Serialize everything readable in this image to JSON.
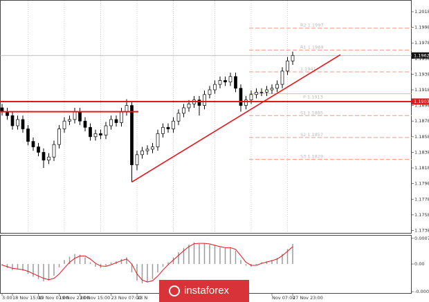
{
  "chart_data": [
    {
      "type": "candlestick",
      "categories": [
        "3:00",
        null,
        "18 Nov 15:00",
        null,
        null,
        null,
        null,
        "19 Nov 07:00",
        null,
        null,
        null,
        "19 Nov 23:00",
        null,
        null,
        null,
        "20 Nov 15:00",
        null,
        null,
        null,
        null,
        null,
        "23 Nov 07:00",
        null,
        null,
        null,
        null,
        "23 N",
        null,
        null,
        null,
        null,
        null,
        null,
        null,
        null,
        null,
        null,
        null,
        null,
        null,
        null,
        null,
        null,
        null,
        null,
        null,
        null,
        null,
        null,
        null,
        null,
        null,
        "Nov 07:00",
        null,
        null,
        null,
        "27 Nov 23:00"
      ],
      "open": [
        1.1895,
        1.189,
        1.1885,
        1.1872,
        1.188,
        1.1868,
        1.1852,
        1.1845,
        1.1838,
        1.1828,
        1.1832,
        1.1848,
        1.1868,
        1.1878,
        1.188,
        1.189,
        1.1878,
        1.187,
        1.1858,
        1.1862,
        1.186,
        1.1872,
        1.188,
        1.1876,
        1.189,
        1.1898,
        1.1822,
        1.1835,
        1.184,
        1.1842,
        1.1845,
        1.1862,
        1.187,
        1.1868,
        1.1878,
        1.1888,
        1.1895,
        1.19,
        1.1905,
        1.1898,
        1.1912,
        1.1918,
        1.1925,
        1.193,
        1.1928,
        1.1935,
        1.192,
        1.1898,
        1.1905,
        1.1912,
        1.1915,
        1.1915,
        1.1918,
        1.192,
        1.1925,
        1.1942,
        1.1955
      ],
      "high": [
        1.19,
        1.1895,
        1.189,
        1.1885,
        1.1885,
        1.1873,
        1.1857,
        1.185,
        1.1843,
        1.1837,
        1.1853,
        1.1873,
        1.1883,
        1.1885,
        1.1895,
        1.1895,
        1.1883,
        1.1875,
        1.1867,
        1.1867,
        1.1877,
        1.1885,
        1.1885,
        1.1895,
        1.1906,
        1.1903,
        1.184,
        1.1845,
        1.1847,
        1.185,
        1.1867,
        1.1875,
        1.1875,
        1.1883,
        1.1893,
        1.19,
        1.1905,
        1.191,
        1.191,
        1.1917,
        1.1923,
        1.193,
        1.1935,
        1.1935,
        1.194,
        1.194,
        1.1925,
        1.191,
        1.1917,
        1.192,
        1.192,
        1.1923,
        1.1925,
        1.193,
        1.1947,
        1.196,
        1.1967
      ],
      "low": [
        1.1885,
        1.188,
        1.1867,
        1.1867,
        1.1863,
        1.1847,
        1.184,
        1.1833,
        1.1818,
        1.1823,
        1.1827,
        1.1843,
        1.1863,
        1.1873,
        1.1875,
        1.1873,
        1.1865,
        1.1853,
        1.1853,
        1.1855,
        1.1855,
        1.1867,
        1.1871,
        1.1871,
        1.1885,
        1.18,
        1.1815,
        1.183,
        1.1835,
        1.1837,
        1.184,
        1.1857,
        1.1863,
        1.1863,
        1.1873,
        1.1883,
        1.189,
        1.1895,
        1.1885,
        1.1893,
        1.1907,
        1.1913,
        1.192,
        1.1923,
        1.1923,
        1.1915,
        1.189,
        1.1893,
        1.19,
        1.1907,
        1.191,
        1.191,
        1.1913,
        1.1915,
        1.192,
        1.1937,
        1.195
      ],
      "close": [
        1.189,
        1.1885,
        1.1872,
        1.188,
        1.1868,
        1.1852,
        1.1845,
        1.1838,
        1.1828,
        1.1832,
        1.1848,
        1.1868,
        1.1878,
        1.188,
        1.189,
        1.1878,
        1.187,
        1.1858,
        1.1862,
        1.186,
        1.1872,
        1.188,
        1.1876,
        1.189,
        1.1898,
        1.1822,
        1.1835,
        1.184,
        1.1842,
        1.1845,
        1.1862,
        1.187,
        1.1868,
        1.1878,
        1.1888,
        1.1895,
        1.19,
        1.1905,
        1.1898,
        1.1912,
        1.1918,
        1.1925,
        1.193,
        1.1928,
        1.1935,
        1.192,
        1.1898,
        1.1905,
        1.1912,
        1.1915,
        1.1915,
        1.1918,
        1.192,
        1.1925,
        1.1942,
        1.1955,
        1.1962
      ],
      "ylim": [
        1.1734,
        1.2033
      ],
      "yticks": [
        1.2018,
        1.1998,
        1.1978,
        1.1958,
        1.1938,
        1.1918,
        1.1898,
        1.1878,
        1.1858,
        1.1838,
        1.1818,
        1.1798,
        1.1778,
        1.1758,
        1.1738
      ],
      "current_price": 1.1962,
      "level": 1.1903,
      "level2": 1.189,
      "level_color": "#e8141b",
      "trendline": [
        1.18,
        1.1963
      ],
      "pivot_point": {
        "value": 1.1913,
        "label": "P  1.1913"
      },
      "pivot_point_color": "#e6c94a",
      "pivots": [
        {
          "value": 1.1997,
          "label": "R2  1.1997"
        },
        {
          "value": 1.1969,
          "label": "R1  1.1969"
        },
        {
          "value": 1.1941,
          "label": "1.1941"
        },
        {
          "value": 1.1885,
          "label": "S1  1.1885"
        },
        {
          "value": 1.1857,
          "label": "S2  1.1857"
        },
        {
          "value": 1.1829,
          "label": "S3  1.1829"
        }
      ],
      "pivot_color": "#f09a80",
      "watermark": "instaforex"
    },
    {
      "type": "oscillator",
      "values": [
        -5e-05,
        -0.00012,
        -0.00018,
        -0.00015,
        -0.0002,
        -0.0003,
        -0.00038,
        -0.00045,
        -0.00052,
        -0.0005,
        -0.00035,
        -0.0001,
        0.00012,
        0.00022,
        0.0003,
        0.00028,
        0.0002,
        5e-05,
        -8e-05,
        -0.00012,
        -5e-05,
        5e-05,
        8e-05,
        0.00015,
        0.0002,
        -0.00025,
        -0.0005,
        -0.00058,
        -0.00055,
        -0.00045,
        -0.00025,
        -8e-05,
        5e-05,
        0.0002,
        0.00035,
        0.00048,
        0.00058,
        0.00065,
        0.0006,
        0.00062,
        0.00058,
        0.00055,
        0.0005,
        0.00048,
        0.0005,
        0.0004,
        0.00012,
        -5e-05,
        -8e-05,
        -2e-05,
        5e-05,
        8e-05,
        0.00012,
        0.00018,
        0.0003,
        0.00045,
        0.0006
      ],
      "signal": [
        -3e-05,
        -8e-05,
        -0.00013,
        -0.00015,
        -0.00017,
        -0.00022,
        -0.00029,
        -0.00036,
        -0.00043,
        -0.00047,
        -0.00043,
        -0.0003,
        -0.00012,
        5e-05,
        0.00017,
        0.00024,
        0.00024,
        0.00015,
        2e-05,
        -6e-05,
        -7e-05,
        -2e-05,
        4e-05,
        0.0001,
        0.00015,
        0.0,
        -0.0003,
        -0.00048,
        -0.00054,
        -0.0005,
        -0.00036,
        -0.00018,
        -2e-05,
        0.00012,
        0.00026,
        0.0004,
        0.00052,
        0.00061,
        0.00062,
        0.00062,
        0.0006,
        0.00056,
        0.00052,
        0.00049,
        0.00049,
        0.00044,
        0.00025,
        5e-05,
        -4e-05,
        -4e-05,
        2e-05,
        6e-05,
        0.0001,
        0.00015,
        0.00025,
        0.00038,
        0.00052
      ],
      "color": "#9a9a9a",
      "signal_color": "#e8141b",
      "ylim": [
        -0.00089,
        0.00087
      ],
      "yticks": [
        0.00077,
        {
          "value": 0,
          "label": "0.00"
        },
        -0.00083
      ]
    }
  ]
}
